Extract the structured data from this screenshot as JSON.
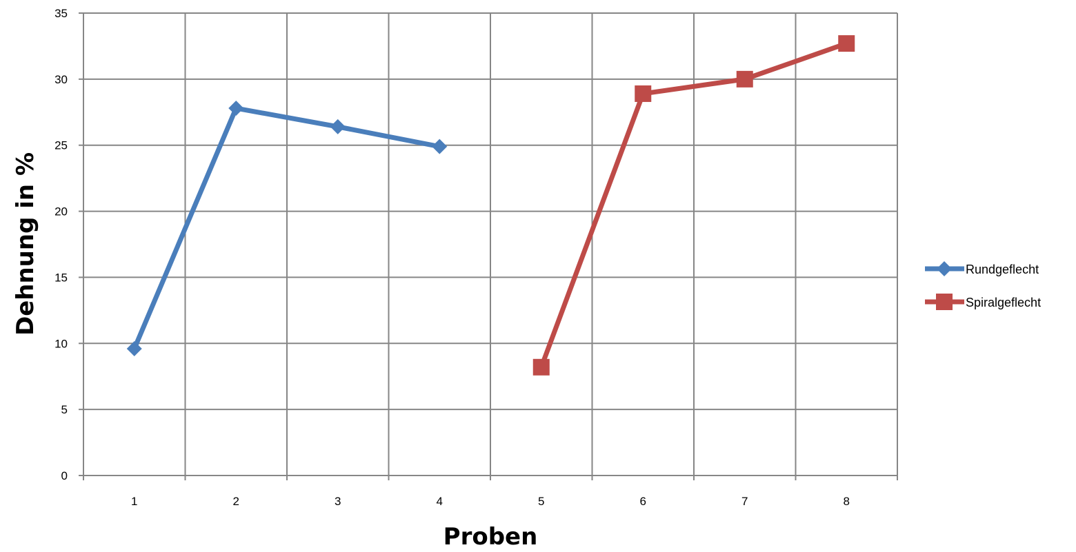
{
  "chart_data": {
    "type": "line",
    "title": "",
    "xlabel": "Proben",
    "ylabel": "Dehnung in %",
    "categories": [
      "1",
      "2",
      "3",
      "4",
      "5",
      "6",
      "7",
      "8"
    ],
    "ylim": [
      0,
      35
    ],
    "yticks": [
      "0",
      "5",
      "10",
      "15",
      "20",
      "25",
      "30",
      "35"
    ],
    "grid": true,
    "legend_position": "right",
    "series": [
      {
        "name": "Rundgeflecht",
        "color": "#4A7EBB",
        "marker": "diamond",
        "values": [
          9.6,
          27.8,
          26.4,
          24.9,
          null,
          null,
          null,
          null
        ]
      },
      {
        "name": "Spiralgeflecht",
        "color": "#BE4B48",
        "marker": "square",
        "values": [
          null,
          null,
          null,
          null,
          8.2,
          28.9,
          30.0,
          32.7
        ]
      }
    ]
  }
}
